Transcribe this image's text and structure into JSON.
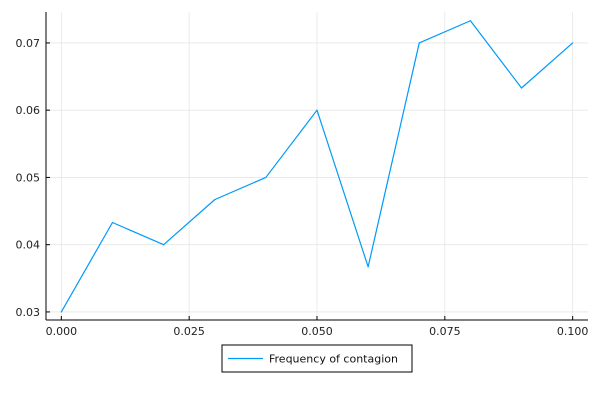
{
  "chart_data": {
    "type": "line",
    "title": "",
    "xlabel": "",
    "ylabel": "",
    "xlim": [
      -0.003,
      0.103
    ],
    "ylim": [
      0.0288,
      0.0746
    ],
    "xticks": [
      0.0,
      0.025,
      0.05,
      0.075,
      0.1
    ],
    "xtick_labels": [
      "0.000",
      "0.025",
      "0.050",
      "0.075",
      "0.100"
    ],
    "yticks": [
      0.03,
      0.04,
      0.05,
      0.06,
      0.07
    ],
    "ytick_labels": [
      "0.03",
      "0.04",
      "0.05",
      "0.06",
      "0.07"
    ],
    "grid": true,
    "legend_position": "bottom-center",
    "series": [
      {
        "name": "Frequency of contagion",
        "color": "#009AFA",
        "x": [
          0.0,
          0.01,
          0.02,
          0.03,
          0.04,
          0.05,
          0.06,
          0.07,
          0.08,
          0.09,
          0.1
        ],
        "y": [
          0.03,
          0.0433,
          0.04,
          0.0467,
          0.05,
          0.06,
          0.0367,
          0.07,
          0.0733,
          0.0633,
          0.07
        ]
      }
    ]
  }
}
